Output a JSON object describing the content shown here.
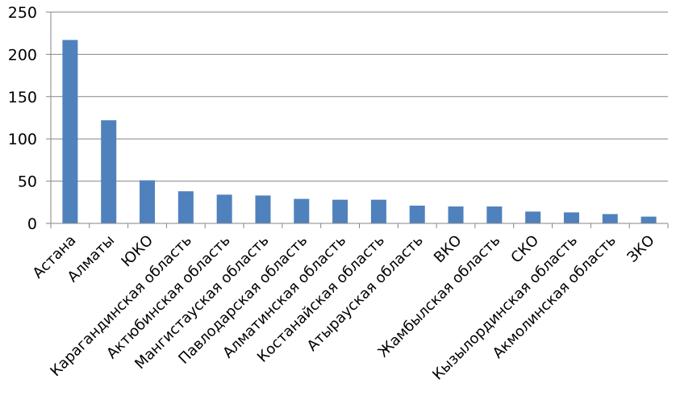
{
  "chart_data": {
    "type": "bar",
    "title": "",
    "xlabel": "",
    "ylabel": "",
    "ylim": [
      0,
      250
    ],
    "yticks": [
      0,
      50,
      100,
      150,
      200,
      250
    ],
    "grid": true,
    "legend": "none",
    "bar_color": "#4f81bd",
    "grid_color": "#868686",
    "categories": [
      "Астана",
      "Алматы",
      "ЮКО",
      "Карагандинская область",
      "Актюбинская область",
      "Мангистауская область",
      "Павлодарская область",
      "Алматинская область",
      "Костанайская область",
      "Атырауская область",
      "ВКО",
      "Жамбылская область",
      "СКО",
      "Кызылординская область",
      "Акмолинская область",
      "ЗКО"
    ],
    "values": [
      217,
      122,
      51,
      38,
      34,
      33,
      29,
      28,
      28,
      21,
      20,
      20,
      14,
      13,
      11,
      8
    ]
  }
}
